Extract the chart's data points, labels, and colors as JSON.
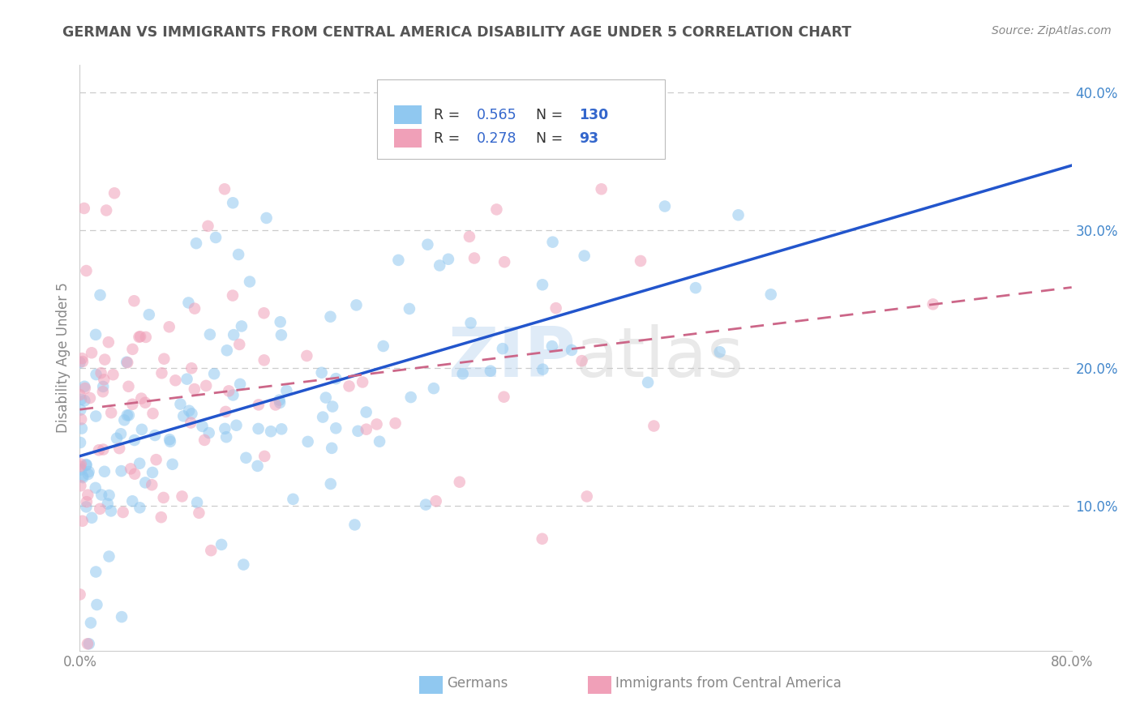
{
  "title": "GERMAN VS IMMIGRANTS FROM CENTRAL AMERICA DISABILITY AGE UNDER 5 CORRELATION CHART",
  "source": "Source: ZipAtlas.com",
  "ylabel": "Disability Age Under 5",
  "xlim": [
    0.0,
    0.8
  ],
  "ylim": [
    -0.005,
    0.42
  ],
  "xtick_positions": [
    0.0,
    0.8
  ],
  "xtick_labels": [
    "0.0%",
    "80.0%"
  ],
  "ytick_positions": [
    0.1,
    0.2,
    0.3,
    0.4
  ],
  "ytick_labels": [
    "10.0%",
    "20.0%",
    "30.0%",
    "40.0%"
  ],
  "german_color": "#90c8f0",
  "german_line_color": "#2255cc",
  "immigrant_color": "#f0a0b8",
  "immigrant_line_color": "#cc6688",
  "german_R": 0.565,
  "german_N": 130,
  "immigrant_R": 0.278,
  "immigrant_N": 93,
  "legend_labels": [
    "Germans",
    "Immigrants from Central America"
  ],
  "watermark_zip": "ZIP",
  "watermark_atlas": "atlas",
  "background_color": "#ffffff",
  "grid_color": "#cccccc",
  "title_color": "#555555",
  "axis_color": "#888888",
  "tick_color": "#4488cc",
  "legend_text_color": "#333333",
  "legend_val_color": "#3366cc"
}
